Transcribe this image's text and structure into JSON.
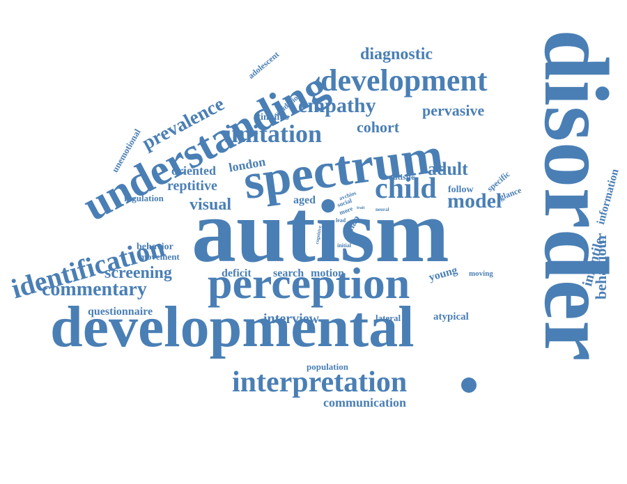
{
  "color": "#4a7fb5",
  "words": {
    "autism": "autism",
    "disorder": "disorder",
    "developmental": "developmental",
    "spectrum": "spectrum",
    "perception": "perception",
    "understanding": "understanding",
    "interpretation": "interpretation",
    "development": "development",
    "identification": "identification",
    "child": "child",
    "empathy": "empathy",
    "imitation": "imitation",
    "prevalence": "prevalence",
    "commentary": "commentary",
    "diagnostic": "diagnostic",
    "pervasive": "pervasive",
    "model": "model",
    "adult": "adult",
    "cohort": "cohort",
    "screening": "screening",
    "visual": "visual",
    "reptitive": "reptitive",
    "oriented": "oriented",
    "london": "london",
    "interview": "interview",
    "behaviour": "behaviour",
    "infantile": "infantile",
    "information": "information",
    "communication": "communication",
    "questionnaire": "questionnaire",
    "unemotional": "unemotional",
    "adolescent": "adolescent",
    "validation": "validation",
    "stimulus": "stimulus",
    "regulation": "regulation",
    "behavior": "behavior",
    "movement": "movement",
    "deficit": "deficit",
    "search": "search",
    "motion": "motion",
    "young": "young",
    "moving": "moving",
    "lateral": "lateral",
    "atypical": "atypical",
    "population": "population",
    "aged": "aged",
    "autistic": "autistic",
    "specific": "specific",
    "follow": "follow",
    "glance": "glance",
    "snap": "snap",
    "lead": "lead",
    "initial": "initial",
    "cognitive": "cognitive",
    "trait": "trait",
    "neural": "neural",
    "more": "more",
    "social": "social",
    "archios": "avchios"
  }
}
